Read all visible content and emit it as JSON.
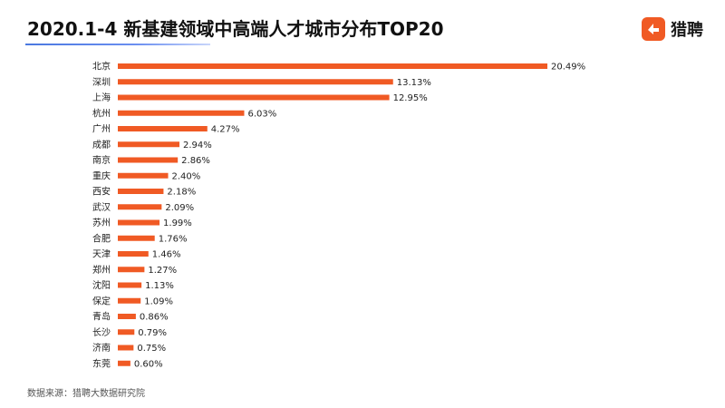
{
  "header": {
    "title": "2020.1-4 新基建领域中高端人才城市分布TOP20",
    "brand_name": "猎聘"
  },
  "footer": {
    "source": "数据来源：猎聘大数据研究院"
  },
  "colors": {
    "bar": "#f05a24",
    "brand": "#f05a24",
    "underline": "#4a78e0"
  },
  "chart_data": {
    "type": "bar",
    "orientation": "horizontal",
    "title": "2020.1-4 新基建领域中高端人才城市分布TOP20",
    "xlabel": "",
    "ylabel": "",
    "unit": "%",
    "grid": false,
    "legend": "none",
    "xlim": [
      0,
      20.49
    ],
    "categories": [
      "北京",
      "深圳",
      "上海",
      "杭州",
      "广州",
      "成都",
      "南京",
      "重庆",
      "西安",
      "武汉",
      "苏州",
      "合肥",
      "天津",
      "郑州",
      "沈阳",
      "保定",
      "青岛",
      "长沙",
      "济南",
      "东莞"
    ],
    "values": [
      20.49,
      13.13,
      12.95,
      6.03,
      4.27,
      2.94,
      2.86,
      2.4,
      2.18,
      2.09,
      1.99,
      1.76,
      1.46,
      1.27,
      1.13,
      1.09,
      0.86,
      0.79,
      0.75,
      0.6
    ],
    "labels": [
      "20.49%",
      "13.13%",
      "12.95%",
      "6.03%",
      "4.27%",
      "2.94%",
      "2.86%",
      "2.40%",
      "2.18%",
      "2.09%",
      "1.99%",
      "1.76%",
      "1.46%",
      "1.27%",
      "1.13%",
      "1.09%",
      "0.86%",
      "0.79%",
      "0.75%",
      "0.60%"
    ]
  }
}
